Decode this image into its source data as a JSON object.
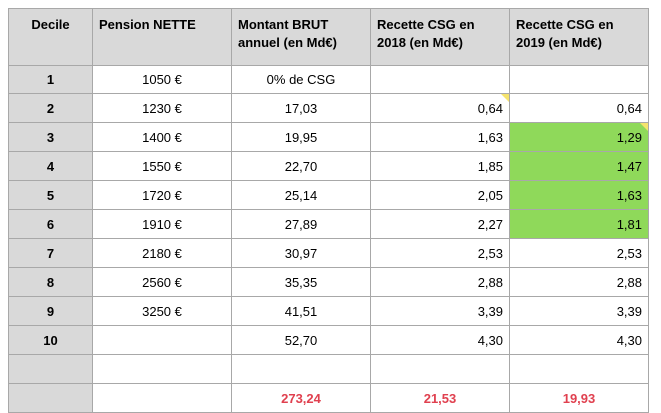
{
  "headers": [
    "Decile",
    "Pension NETTE",
    "Montant BRUT annuel (en Md€)",
    "Recette CSG en 2018 (en Md€)",
    "Recette CSG en 2019 (en Md€)"
  ],
  "rows": [
    {
      "decile": "1",
      "pension": "1050 €",
      "brut": "0% de CSG",
      "csg2018": "",
      "csg2019": ""
    },
    {
      "decile": "2",
      "pension": "1230 €",
      "brut": "17,03",
      "csg2018": "0,64",
      "csg2019": "0,64"
    },
    {
      "decile": "3",
      "pension": "1400 €",
      "brut": "19,95",
      "csg2018": "1,63",
      "csg2019": "1,29"
    },
    {
      "decile": "4",
      "pension": "1550 €",
      "brut": "22,70",
      "csg2018": "1,85",
      "csg2019": "1,47"
    },
    {
      "decile": "5",
      "pension": "1720 €",
      "brut": "25,14",
      "csg2018": "2,05",
      "csg2019": "1,63"
    },
    {
      "decile": "6",
      "pension": "1910 €",
      "brut": "27,89",
      "csg2018": "2,27",
      "csg2019": "1,81"
    },
    {
      "decile": "7",
      "pension": "2180 €",
      "brut": "30,97",
      "csg2018": "2,53",
      "csg2019": "2,53"
    },
    {
      "decile": "8",
      "pension": "2560 €",
      "brut": "35,35",
      "csg2018": "2,88",
      "csg2019": "2,88"
    },
    {
      "decile": "9",
      "pension": "3250 €",
      "brut": "41,51",
      "csg2018": "3,39",
      "csg2019": "3,39"
    },
    {
      "decile": "10",
      "pension": "",
      "brut": "52,70",
      "csg2018": "4,30",
      "csg2019": "4,30"
    },
    {
      "decile": "",
      "pension": "",
      "brut": "",
      "csg2018": "",
      "csg2019": ""
    }
  ],
  "totals": {
    "brut": "273,24",
    "csg2018": "21,53",
    "csg2019": "19,93"
  },
  "colors": {
    "highlight": "#8fd95a",
    "total_text": "#e0404f",
    "header_bg": "#d9d9d9",
    "comment_flag": "#f5e36d"
  }
}
